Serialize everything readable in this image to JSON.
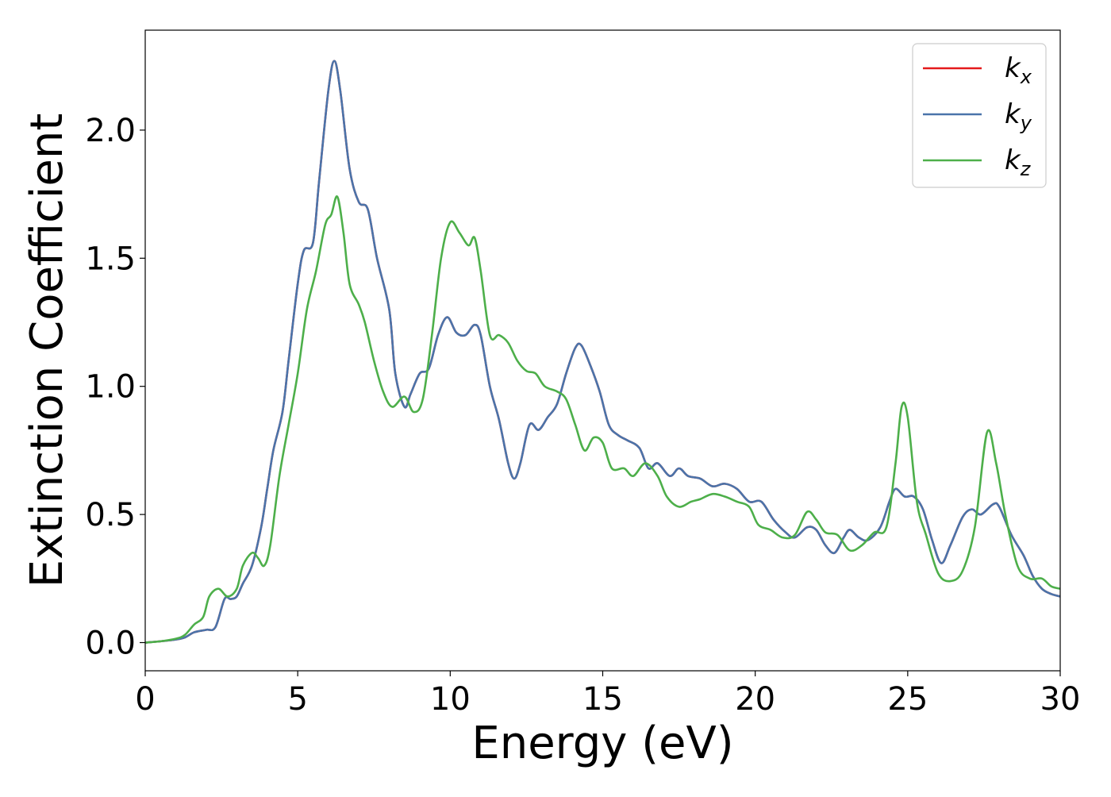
{
  "chart_data": {
    "type": "line",
    "title": "",
    "xlabel": "Energy (eV)",
    "ylabel": "Extinction Coefficient",
    "xlim": [
      0,
      30
    ],
    "ylim": [
      -0.11,
      2.39
    ],
    "x_ticks": [
      0,
      5,
      10,
      15,
      20,
      25,
      30
    ],
    "x_tick_labels": [
      "0",
      "5",
      "10",
      "15",
      "20",
      "25",
      "30"
    ],
    "y_ticks": [
      0.0,
      0.5,
      1.0,
      1.5,
      2.0
    ],
    "y_tick_labels": [
      "0.0",
      "0.5",
      "1.0",
      "1.5",
      "2.0"
    ],
    "grid": false,
    "legend_position": "top-right",
    "series": [
      {
        "name": "k_x",
        "label_main": "k",
        "label_sub": "x",
        "color": "#e41a1c",
        "points": [
          [
            0,
            0
          ],
          [
            0.5,
            0.005
          ],
          [
            1,
            0.012
          ],
          [
            1.3,
            0.02
          ],
          [
            1.6,
            0.04
          ],
          [
            2,
            0.05
          ],
          [
            2.3,
            0.06
          ],
          [
            2.6,
            0.17
          ],
          [
            2.8,
            0.17
          ],
          [
            3,
            0.18
          ],
          [
            3.2,
            0.23
          ],
          [
            3.5,
            0.3
          ],
          [
            3.8,
            0.45
          ],
          [
            4,
            0.6
          ],
          [
            4.2,
            0.75
          ],
          [
            4.5,
            0.9
          ],
          [
            4.7,
            1.1
          ],
          [
            5,
            1.4
          ],
          [
            5.2,
            1.53
          ],
          [
            5.5,
            1.56
          ],
          [
            5.7,
            1.8
          ],
          [
            6,
            2.15
          ],
          [
            6.2,
            2.27
          ],
          [
            6.4,
            2.15
          ],
          [
            6.7,
            1.85
          ],
          [
            7,
            1.72
          ],
          [
            7.3,
            1.69
          ],
          [
            7.6,
            1.5
          ],
          [
            8,
            1.3
          ],
          [
            8.2,
            1.05
          ],
          [
            8.5,
            0.92
          ],
          [
            8.7,
            0.97
          ],
          [
            9,
            1.05
          ],
          [
            9.3,
            1.07
          ],
          [
            9.6,
            1.2
          ],
          [
            9.9,
            1.27
          ],
          [
            10.2,
            1.21
          ],
          [
            10.5,
            1.2
          ],
          [
            10.8,
            1.24
          ],
          [
            11,
            1.2
          ],
          [
            11.3,
            1.0
          ],
          [
            11.6,
            0.87
          ],
          [
            11.9,
            0.7
          ],
          [
            12.1,
            0.64
          ],
          [
            12.3,
            0.7
          ],
          [
            12.6,
            0.85
          ],
          [
            12.9,
            0.83
          ],
          [
            13.2,
            0.88
          ],
          [
            13.5,
            0.93
          ],
          [
            13.8,
            1.05
          ],
          [
            14.1,
            1.15
          ],
          [
            14.3,
            1.16
          ],
          [
            14.6,
            1.08
          ],
          [
            14.9,
            0.98
          ],
          [
            15.2,
            0.85
          ],
          [
            15.5,
            0.81
          ],
          [
            15.8,
            0.79
          ],
          [
            16.2,
            0.76
          ],
          [
            16.5,
            0.68
          ],
          [
            16.8,
            0.7
          ],
          [
            17.2,
            0.65
          ],
          [
            17.5,
            0.68
          ],
          [
            17.8,
            0.65
          ],
          [
            18.2,
            0.64
          ],
          [
            18.6,
            0.61
          ],
          [
            19,
            0.62
          ],
          [
            19.4,
            0.6
          ],
          [
            19.8,
            0.55
          ],
          [
            20.2,
            0.55
          ],
          [
            20.6,
            0.48
          ],
          [
            21,
            0.43
          ],
          [
            21.3,
            0.41
          ],
          [
            21.7,
            0.45
          ],
          [
            22,
            0.44
          ],
          [
            22.3,
            0.38
          ],
          [
            22.6,
            0.35
          ],
          [
            22.9,
            0.41
          ],
          [
            23.1,
            0.44
          ],
          [
            23.4,
            0.41
          ],
          [
            23.7,
            0.4
          ],
          [
            24.1,
            0.45
          ],
          [
            24.4,
            0.55
          ],
          [
            24.6,
            0.6
          ],
          [
            24.9,
            0.57
          ],
          [
            25.2,
            0.57
          ],
          [
            25.5,
            0.52
          ],
          [
            25.8,
            0.4
          ],
          [
            26.1,
            0.31
          ],
          [
            26.4,
            0.38
          ],
          [
            26.8,
            0.49
          ],
          [
            27.1,
            0.52
          ],
          [
            27.4,
            0.5
          ],
          [
            27.8,
            0.54
          ],
          [
            28,
            0.53
          ],
          [
            28.4,
            0.42
          ],
          [
            28.8,
            0.34
          ],
          [
            29.1,
            0.26
          ],
          [
            29.4,
            0.21
          ],
          [
            29.7,
            0.19
          ],
          [
            30,
            0.18
          ]
        ]
      },
      {
        "name": "k_y",
        "label_main": "k",
        "label_sub": "y",
        "color": "#4a74aa",
        "points": [
          [
            0,
            0
          ],
          [
            0.5,
            0.005
          ],
          [
            1,
            0.012
          ],
          [
            1.3,
            0.02
          ],
          [
            1.6,
            0.04
          ],
          [
            2,
            0.05
          ],
          [
            2.3,
            0.06
          ],
          [
            2.6,
            0.17
          ],
          [
            2.8,
            0.17
          ],
          [
            3,
            0.18
          ],
          [
            3.2,
            0.23
          ],
          [
            3.5,
            0.3
          ],
          [
            3.8,
            0.45
          ],
          [
            4,
            0.6
          ],
          [
            4.2,
            0.75
          ],
          [
            4.5,
            0.9
          ],
          [
            4.7,
            1.1
          ],
          [
            5,
            1.4
          ],
          [
            5.2,
            1.53
          ],
          [
            5.5,
            1.56
          ],
          [
            5.7,
            1.8
          ],
          [
            6,
            2.15
          ],
          [
            6.2,
            2.27
          ],
          [
            6.4,
            2.15
          ],
          [
            6.7,
            1.85
          ],
          [
            7,
            1.72
          ],
          [
            7.3,
            1.69
          ],
          [
            7.6,
            1.5
          ],
          [
            8,
            1.3
          ],
          [
            8.2,
            1.05
          ],
          [
            8.5,
            0.92
          ],
          [
            8.7,
            0.97
          ],
          [
            9,
            1.05
          ],
          [
            9.3,
            1.07
          ],
          [
            9.6,
            1.2
          ],
          [
            9.9,
            1.27
          ],
          [
            10.2,
            1.21
          ],
          [
            10.5,
            1.2
          ],
          [
            10.8,
            1.24
          ],
          [
            11,
            1.2
          ],
          [
            11.3,
            1.0
          ],
          [
            11.6,
            0.87
          ],
          [
            11.9,
            0.7
          ],
          [
            12.1,
            0.64
          ],
          [
            12.3,
            0.7
          ],
          [
            12.6,
            0.85
          ],
          [
            12.9,
            0.83
          ],
          [
            13.2,
            0.88
          ],
          [
            13.5,
            0.93
          ],
          [
            13.8,
            1.05
          ],
          [
            14.1,
            1.15
          ],
          [
            14.3,
            1.16
          ],
          [
            14.6,
            1.08
          ],
          [
            14.9,
            0.98
          ],
          [
            15.2,
            0.85
          ],
          [
            15.5,
            0.81
          ],
          [
            15.8,
            0.79
          ],
          [
            16.2,
            0.76
          ],
          [
            16.5,
            0.68
          ],
          [
            16.8,
            0.7
          ],
          [
            17.2,
            0.65
          ],
          [
            17.5,
            0.68
          ],
          [
            17.8,
            0.65
          ],
          [
            18.2,
            0.64
          ],
          [
            18.6,
            0.61
          ],
          [
            19,
            0.62
          ],
          [
            19.4,
            0.6
          ],
          [
            19.8,
            0.55
          ],
          [
            20.2,
            0.55
          ],
          [
            20.6,
            0.48
          ],
          [
            21,
            0.43
          ],
          [
            21.3,
            0.41
          ],
          [
            21.7,
            0.45
          ],
          [
            22,
            0.44
          ],
          [
            22.3,
            0.38
          ],
          [
            22.6,
            0.35
          ],
          [
            22.9,
            0.41
          ],
          [
            23.1,
            0.44
          ],
          [
            23.4,
            0.41
          ],
          [
            23.7,
            0.4
          ],
          [
            24.1,
            0.45
          ],
          [
            24.4,
            0.55
          ],
          [
            24.6,
            0.6
          ],
          [
            24.9,
            0.57
          ],
          [
            25.2,
            0.57
          ],
          [
            25.5,
            0.52
          ],
          [
            25.8,
            0.4
          ],
          [
            26.1,
            0.31
          ],
          [
            26.4,
            0.38
          ],
          [
            26.8,
            0.49
          ],
          [
            27.1,
            0.52
          ],
          [
            27.4,
            0.5
          ],
          [
            27.8,
            0.54
          ],
          [
            28,
            0.53
          ],
          [
            28.4,
            0.42
          ],
          [
            28.8,
            0.34
          ],
          [
            29.1,
            0.26
          ],
          [
            29.4,
            0.21
          ],
          [
            29.7,
            0.19
          ],
          [
            30,
            0.18
          ]
        ]
      },
      {
        "name": "k_z",
        "label_main": "k",
        "label_sub": "z",
        "color": "#4daf4a",
        "points": [
          [
            0,
            0
          ],
          [
            0.5,
            0.005
          ],
          [
            1,
            0.015
          ],
          [
            1.3,
            0.03
          ],
          [
            1.6,
            0.07
          ],
          [
            1.9,
            0.1
          ],
          [
            2.1,
            0.18
          ],
          [
            2.4,
            0.21
          ],
          [
            2.7,
            0.18
          ],
          [
            3,
            0.21
          ],
          [
            3.2,
            0.3
          ],
          [
            3.5,
            0.35
          ],
          [
            3.7,
            0.33
          ],
          [
            3.9,
            0.3
          ],
          [
            4.1,
            0.38
          ],
          [
            4.4,
            0.65
          ],
          [
            4.7,
            0.85
          ],
          [
            5,
            1.05
          ],
          [
            5.3,
            1.3
          ],
          [
            5.6,
            1.45
          ],
          [
            5.9,
            1.63
          ],
          [
            6.1,
            1.67
          ],
          [
            6.3,
            1.74
          ],
          [
            6.5,
            1.6
          ],
          [
            6.7,
            1.4
          ],
          [
            7,
            1.32
          ],
          [
            7.2,
            1.25
          ],
          [
            7.5,
            1.1
          ],
          [
            7.8,
            0.98
          ],
          [
            8.1,
            0.92
          ],
          [
            8.5,
            0.96
          ],
          [
            8.8,
            0.9
          ],
          [
            9.1,
            0.95
          ],
          [
            9.4,
            1.2
          ],
          [
            9.7,
            1.5
          ],
          [
            10,
            1.64
          ],
          [
            10.3,
            1.6
          ],
          [
            10.6,
            1.55
          ],
          [
            10.8,
            1.58
          ],
          [
            11,
            1.45
          ],
          [
            11.3,
            1.2
          ],
          [
            11.6,
            1.2
          ],
          [
            11.9,
            1.17
          ],
          [
            12.2,
            1.1
          ],
          [
            12.5,
            1.06
          ],
          [
            12.8,
            1.05
          ],
          [
            13.1,
            1.0
          ],
          [
            13.5,
            0.98
          ],
          [
            13.8,
            0.95
          ],
          [
            14.1,
            0.85
          ],
          [
            14.4,
            0.75
          ],
          [
            14.7,
            0.8
          ],
          [
            15,
            0.78
          ],
          [
            15.3,
            0.68
          ],
          [
            15.7,
            0.68
          ],
          [
            16,
            0.65
          ],
          [
            16.4,
            0.7
          ],
          [
            16.8,
            0.65
          ],
          [
            17.1,
            0.57
          ],
          [
            17.5,
            0.53
          ],
          [
            17.9,
            0.55
          ],
          [
            18.2,
            0.56
          ],
          [
            18.6,
            0.58
          ],
          [
            19,
            0.57
          ],
          [
            19.4,
            0.55
          ],
          [
            19.8,
            0.53
          ],
          [
            20.1,
            0.46
          ],
          [
            20.5,
            0.44
          ],
          [
            20.9,
            0.41
          ],
          [
            21.3,
            0.42
          ],
          [
            21.7,
            0.51
          ],
          [
            22,
            0.48
          ],
          [
            22.3,
            0.43
          ],
          [
            22.7,
            0.42
          ],
          [
            23.1,
            0.36
          ],
          [
            23.5,
            0.38
          ],
          [
            23.9,
            0.43
          ],
          [
            24.3,
            0.45
          ],
          [
            24.6,
            0.7
          ],
          [
            24.8,
            0.92
          ],
          [
            25,
            0.88
          ],
          [
            25.3,
            0.55
          ],
          [
            25.6,
            0.42
          ],
          [
            26,
            0.27
          ],
          [
            26.4,
            0.24
          ],
          [
            26.8,
            0.28
          ],
          [
            27.2,
            0.45
          ],
          [
            27.6,
            0.82
          ],
          [
            27.9,
            0.7
          ],
          [
            28.2,
            0.5
          ],
          [
            28.6,
            0.3
          ],
          [
            29,
            0.25
          ],
          [
            29.4,
            0.25
          ],
          [
            29.7,
            0.22
          ],
          [
            30,
            0.21
          ]
        ]
      }
    ]
  }
}
